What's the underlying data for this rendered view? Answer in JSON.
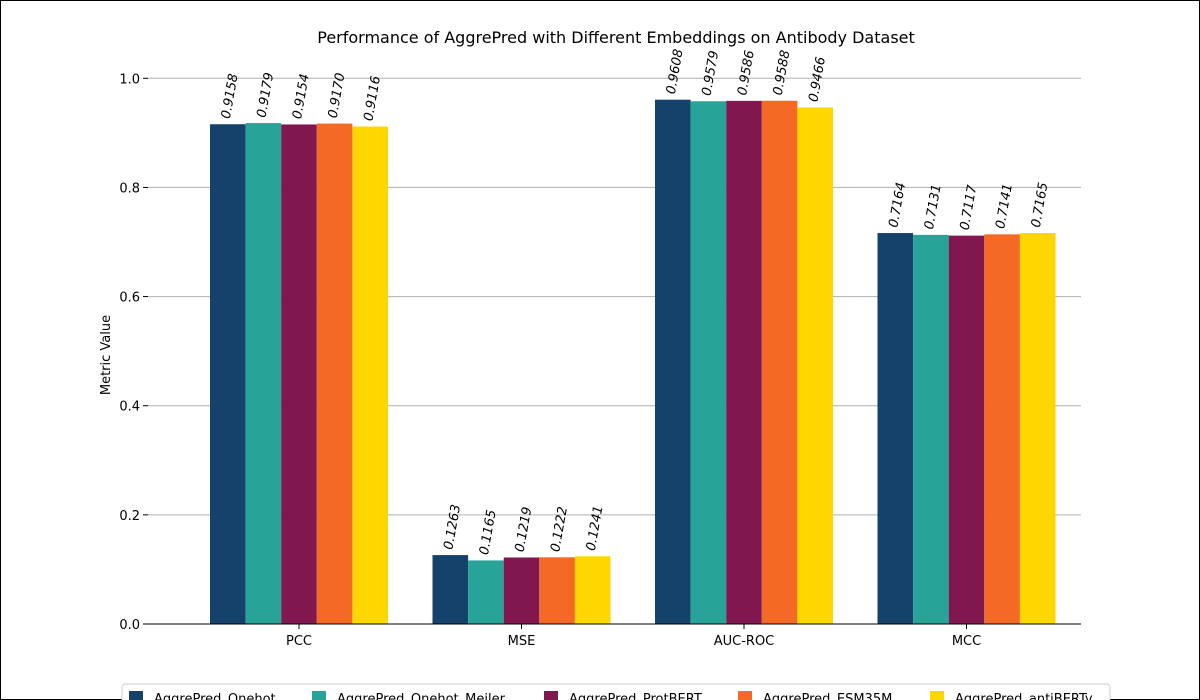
{
  "chart_data": {
    "type": "bar",
    "title": "Performance of AggrePred with Different Embeddings on Antibody Dataset",
    "xlabel": "",
    "ylabel": "Metric Value",
    "categories": [
      "PCC",
      "MSE",
      "AUC-ROC",
      "MCC"
    ],
    "ylim": [
      0,
      1.05
    ],
    "yticks": [
      "0.0",
      "0.2",
      "0.4",
      "0.6",
      "0.8",
      "1.0"
    ],
    "grid": "horizontal",
    "legend_position": "bottom-center",
    "series": [
      {
        "name": "AggrePred_Onehot",
        "color": "#15426b",
        "values": [
          0.9158,
          0.1263,
          0.9608,
          0.7164
        ],
        "labels": [
          "0.9158",
          "0.1263",
          "0.9608",
          "0.7164"
        ]
      },
      {
        "name": "AggrePred_Onehot_Meiler",
        "color": "#27a397",
        "values": [
          0.9179,
          0.1165,
          0.9579,
          0.7131
        ],
        "labels": [
          "0.9179",
          "0.1165",
          "0.9579",
          "0.7131"
        ]
      },
      {
        "name": "AggrePred_ProtBERT",
        "color": "#80174f",
        "values": [
          0.9154,
          0.1219,
          0.9586,
          0.7117
        ],
        "labels": [
          "0.9154",
          "0.1219",
          "0.9586",
          "0.7117"
        ]
      },
      {
        "name": "AggrePred_ESM35M",
        "color": "#f46a25",
        "values": [
          0.917,
          0.1222,
          0.9588,
          0.7141
        ],
        "labels": [
          "0.9170",
          "0.1222",
          "0.9588",
          "0.7141"
        ]
      },
      {
        "name": "AggrePred_antiBERTy",
        "color": "#ffd700",
        "values": [
          0.9116,
          0.1241,
          0.9466,
          0.7165
        ],
        "labels": [
          "0.9116",
          "0.1241",
          "0.9466",
          "0.7165"
        ]
      }
    ]
  }
}
